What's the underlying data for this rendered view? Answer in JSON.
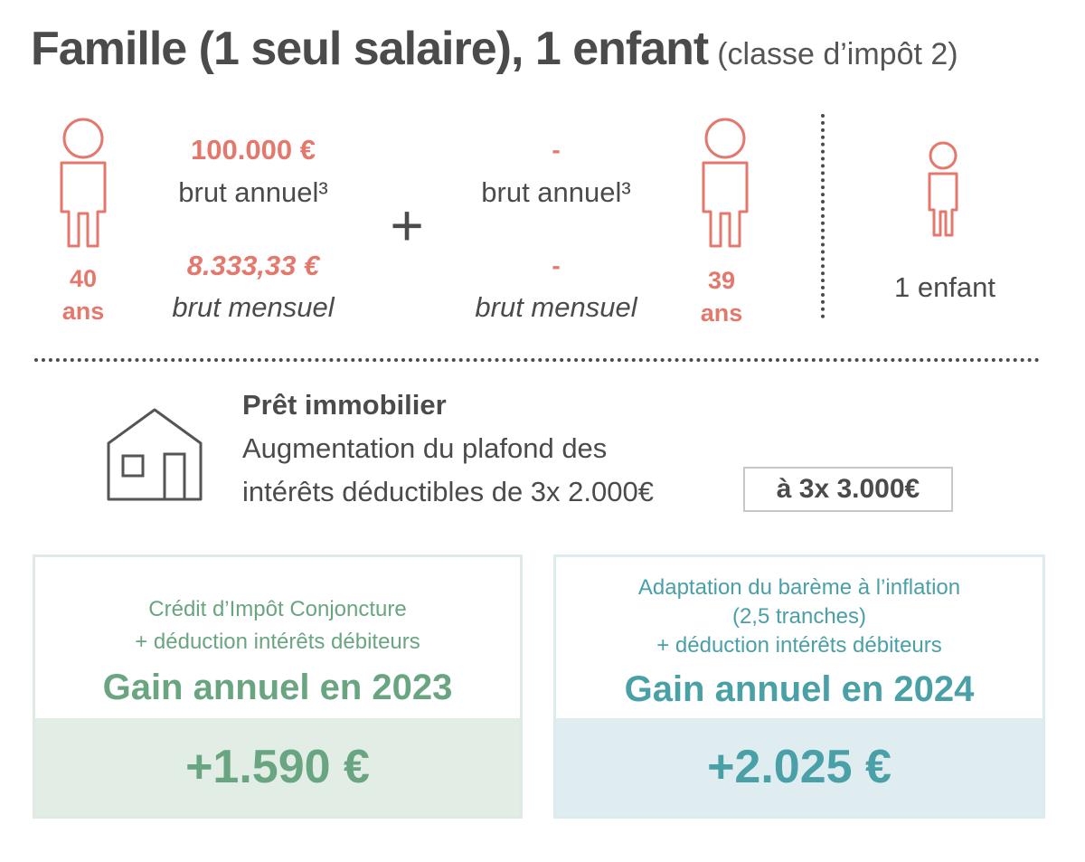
{
  "title": {
    "main": "Famille (1 seul salaire), 1 enfant",
    "sub": "(classe d’impôt 2)"
  },
  "adult1": {
    "age_number": "40",
    "age_unit": "ans",
    "annual_amount": "100.000 €",
    "annual_label": "brut annuel³",
    "monthly_amount": "8.333,33 €",
    "monthly_label": "brut mensuel"
  },
  "plus_sign": "+",
  "adult2": {
    "annual_amount": "-",
    "annual_label": "brut annuel³",
    "monthly_amount": "-",
    "monthly_label": "brut mensuel",
    "age_number": "39",
    "age_unit": "ans"
  },
  "child": {
    "label": "1 enfant"
  },
  "loan": {
    "title": "Prêt immobilier",
    "line1": "Augmentation du plafond des",
    "line2": "intérêts déductibles de 3x  2.000€",
    "new_value": "à 3x 3.000€"
  },
  "card_2023": {
    "sub1": "Crédit d’Impôt Conjoncture",
    "sub2": "+ déduction intérêts débiteurs",
    "heading": "Gain annuel en 2023",
    "value": "+1.590 €"
  },
  "card_2024": {
    "sub1": "Adaptation du barème à l’inflation",
    "sub2": "(2,5 tranches)",
    "sub3": "+ déduction intérêts débiteurs",
    "heading": "Gain annuel en 2024",
    "value": "+2.025 €"
  },
  "colors": {
    "person": "#e4786d",
    "green": "#6aa581",
    "teal": "#4aa0a7",
    "text": "#4b4b4b"
  },
  "icons": [
    "adult-person-icon",
    "child-person-icon",
    "house-icon"
  ]
}
